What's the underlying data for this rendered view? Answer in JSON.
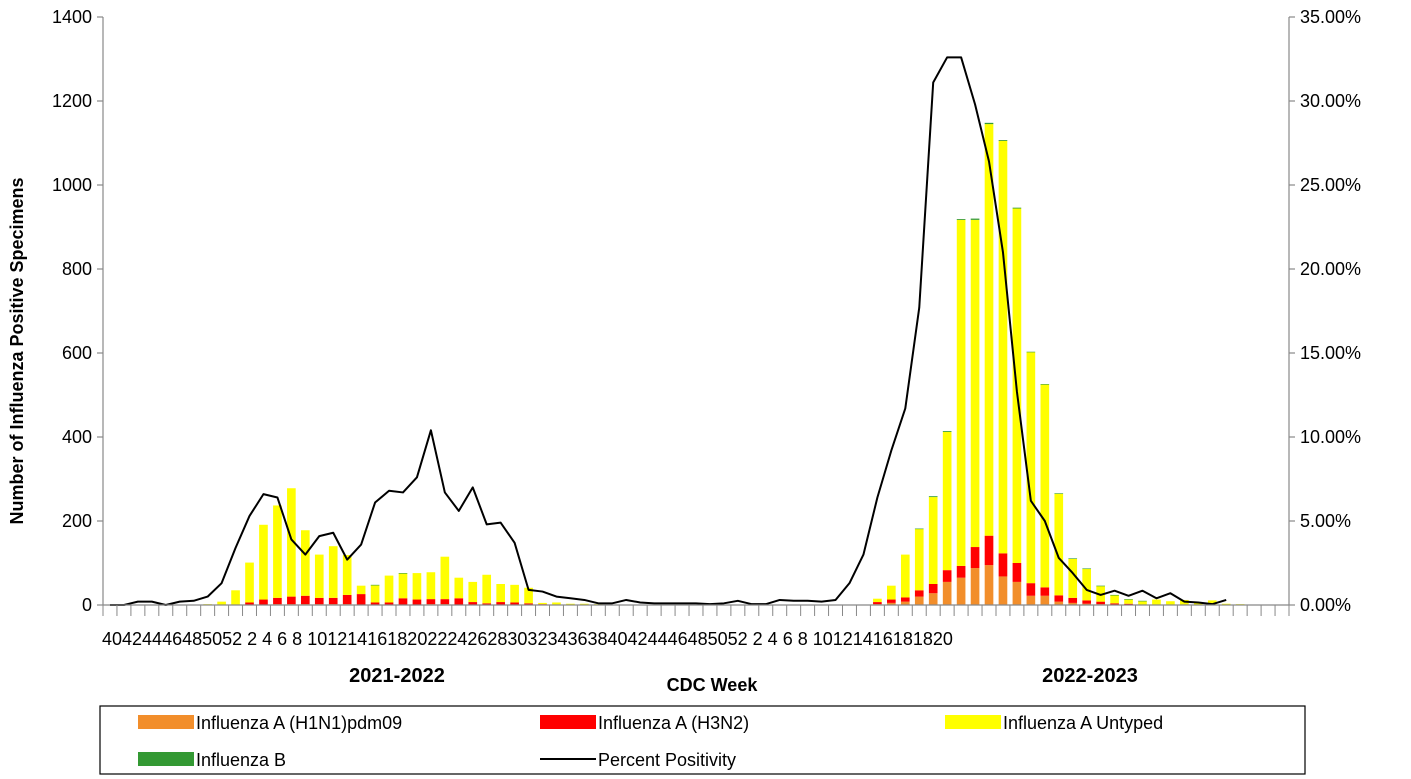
{
  "chart_data": {
    "type": "bar",
    "stacked": true,
    "ylabel": "Number of Influenza Positive Specimens",
    "xlabel": "CDC Week",
    "ylim": [
      0,
      1400
    ],
    "yticks": [
      "0",
      "200",
      "400",
      "600",
      "800",
      "1000",
      "1200",
      "1400"
    ],
    "y2lim": [
      0,
      35
    ],
    "y2ticks": [
      "0.00%",
      "5.00%",
      "10.00%",
      "15.00%",
      "20.00%",
      "25.00%",
      "30.00%",
      "35.00%"
    ],
    "season_labels": [
      "2021-2022",
      "2022-2023"
    ],
    "x_tick_text": "40424446485052 2 4 6 8 10121416182022242628303234363840424446485052 2 4 6 8 10121416181820",
    "legend_position": "bottom",
    "categories": [
      "40",
      "41",
      "42",
      "43",
      "44",
      "45",
      "46",
      "47",
      "48",
      "49",
      "50",
      "51",
      "52",
      "1",
      "2",
      "3",
      "4",
      "5",
      "6",
      "7",
      "8",
      "9",
      "10",
      "11",
      "12",
      "13",
      "14",
      "15",
      "16",
      "17",
      "18",
      "19",
      "20",
      "21",
      "22",
      "23",
      "24",
      "25",
      "26",
      "27",
      "28",
      "29",
      "30",
      "31",
      "32",
      "33",
      "34",
      "35",
      "36",
      "37",
      "38",
      "39",
      "40",
      "41",
      "42",
      "43",
      "44",
      "45",
      "46",
      "47",
      "48",
      "49",
      "50",
      "51",
      "52",
      "1",
      "2",
      "3",
      "4",
      "5",
      "6",
      "7",
      "8",
      "9",
      "10",
      "11",
      "12",
      "13",
      "14",
      "15",
      "16",
      "17",
      "18",
      "19",
      "20"
    ],
    "series": [
      {
        "name": "Influenza A (H1N1)pdm09",
        "type": "bar",
        "color": "#F28E2B",
        "values": [
          0,
          0,
          0,
          0,
          0,
          0,
          0,
          0,
          0,
          0,
          1,
          1,
          2,
          2,
          2,
          2,
          2,
          2,
          1,
          1,
          1,
          1,
          1,
          2,
          2,
          1,
          1,
          1,
          1,
          1,
          1,
          0,
          0,
          0,
          0,
          0,
          0,
          0,
          0,
          0,
          0,
          0,
          0,
          0,
          0,
          0,
          0,
          0,
          0,
          0,
          0,
          0,
          0,
          0,
          0,
          2,
          5,
          8,
          20,
          28,
          55,
          65,
          88,
          95,
          68,
          55,
          22,
          22,
          8,
          5,
          3,
          2,
          1,
          1,
          0,
          0,
          0,
          0,
          0,
          0,
          0,
          0,
          0,
          0,
          0
        ]
      },
      {
        "name": "Influenza A (H3N2)",
        "type": "bar",
        "color": "#FF0000",
        "values": [
          0,
          0,
          0,
          0,
          0,
          0,
          0,
          0,
          0,
          1,
          5,
          12,
          15,
          18,
          20,
          15,
          15,
          22,
          25,
          5,
          5,
          15,
          12,
          12,
          12,
          15,
          6,
          3,
          6,
          5,
          3,
          2,
          0,
          0,
          0,
          0,
          0,
          0,
          0,
          0,
          0,
          0,
          0,
          0,
          0,
          0,
          0,
          0,
          0,
          0,
          0,
          0,
          0,
          0,
          0,
          5,
          8,
          10,
          15,
          22,
          28,
          28,
          50,
          70,
          55,
          45,
          30,
          20,
          15,
          12,
          8,
          6,
          3,
          2,
          1,
          1,
          0,
          0,
          0,
          0,
          0,
          0,
          0,
          0,
          0
        ]
      },
      {
        "name": "Influenza A Untyped",
        "type": "bar",
        "color": "#FFFF00",
        "values": [
          0,
          0,
          0,
          0,
          0,
          0,
          0,
          2,
          8,
          34,
          95,
          178,
          220,
          258,
          156,
          103,
          123,
          95,
          20,
          41,
          64,
          59,
          63,
          64,
          101,
          49,
          48,
          68,
          43,
          42,
          37,
          3,
          6,
          3,
          3,
          2,
          0,
          0,
          0,
          0,
          0,
          0,
          0,
          0,
          0,
          0,
          0,
          0,
          0,
          0,
          0,
          0,
          0,
          0,
          0,
          8,
          33,
          102,
          146,
          207,
          329,
          824,
          779,
          980,
          982,
          844,
          550,
          483,
          242,
          93,
          75,
          37,
          19,
          10,
          8,
          12,
          9,
          12,
          7,
          11,
          3,
          2,
          1,
          0,
          0
        ]
      },
      {
        "name": "Influenza B",
        "type": "bar",
        "color": "#339933",
        "values": [
          0,
          0,
          0,
          0,
          0,
          0,
          0,
          0,
          0,
          0,
          0,
          0,
          0,
          0,
          0,
          0,
          0,
          0,
          0,
          1,
          0,
          1,
          0,
          0,
          0,
          0,
          0,
          0,
          0,
          0,
          0,
          0,
          0,
          0,
          0,
          0,
          0,
          0,
          0,
          0,
          0,
          0,
          0,
          0,
          0,
          0,
          0,
          0,
          0,
          0,
          0,
          0,
          0,
          0,
          0,
          0,
          0,
          0,
          1,
          2,
          2,
          2,
          3,
          3,
          2,
          2,
          1,
          1,
          1,
          1,
          1,
          1,
          1,
          1,
          1,
          0,
          0,
          0,
          0,
          0,
          0,
          0,
          0,
          0,
          0
        ]
      },
      {
        "name": "Percent Positivity",
        "type": "line",
        "axis": "right",
        "color": "#000000",
        "values": [
          0,
          0,
          0.2,
          0.2,
          0,
          0.2,
          0.25,
          0.5,
          1.3,
          3.4,
          5.3,
          6.6,
          6.4,
          3.9,
          3,
          4.1,
          4.3,
          2.7,
          3.6,
          6.1,
          6.8,
          6.7,
          7.6,
          10.4,
          6.7,
          5.6,
          7,
          4.8,
          4.9,
          3.7,
          0.9,
          0.8,
          0.5,
          0.4,
          0.3,
          0.1,
          0.1,
          0.3,
          0.15,
          0.1,
          0.1,
          0.1,
          0.1,
          0.05,
          0.1,
          0.25,
          0.05,
          0.05,
          0.3,
          0.25,
          0.25,
          0.2,
          0.3,
          1.3,
          3,
          6.4,
          9.2,
          11.7,
          17.7,
          31.1,
          32.6,
          32.6,
          29.8,
          26.4,
          21,
          12.7,
          6.2,
          5,
          2.8,
          1.9,
          0.9,
          0.6,
          0.85,
          0.55,
          0.85,
          0.4,
          0.7,
          0.2,
          0.15,
          0.05,
          0.3,
          null,
          null,
          null,
          null
        ]
      }
    ]
  }
}
